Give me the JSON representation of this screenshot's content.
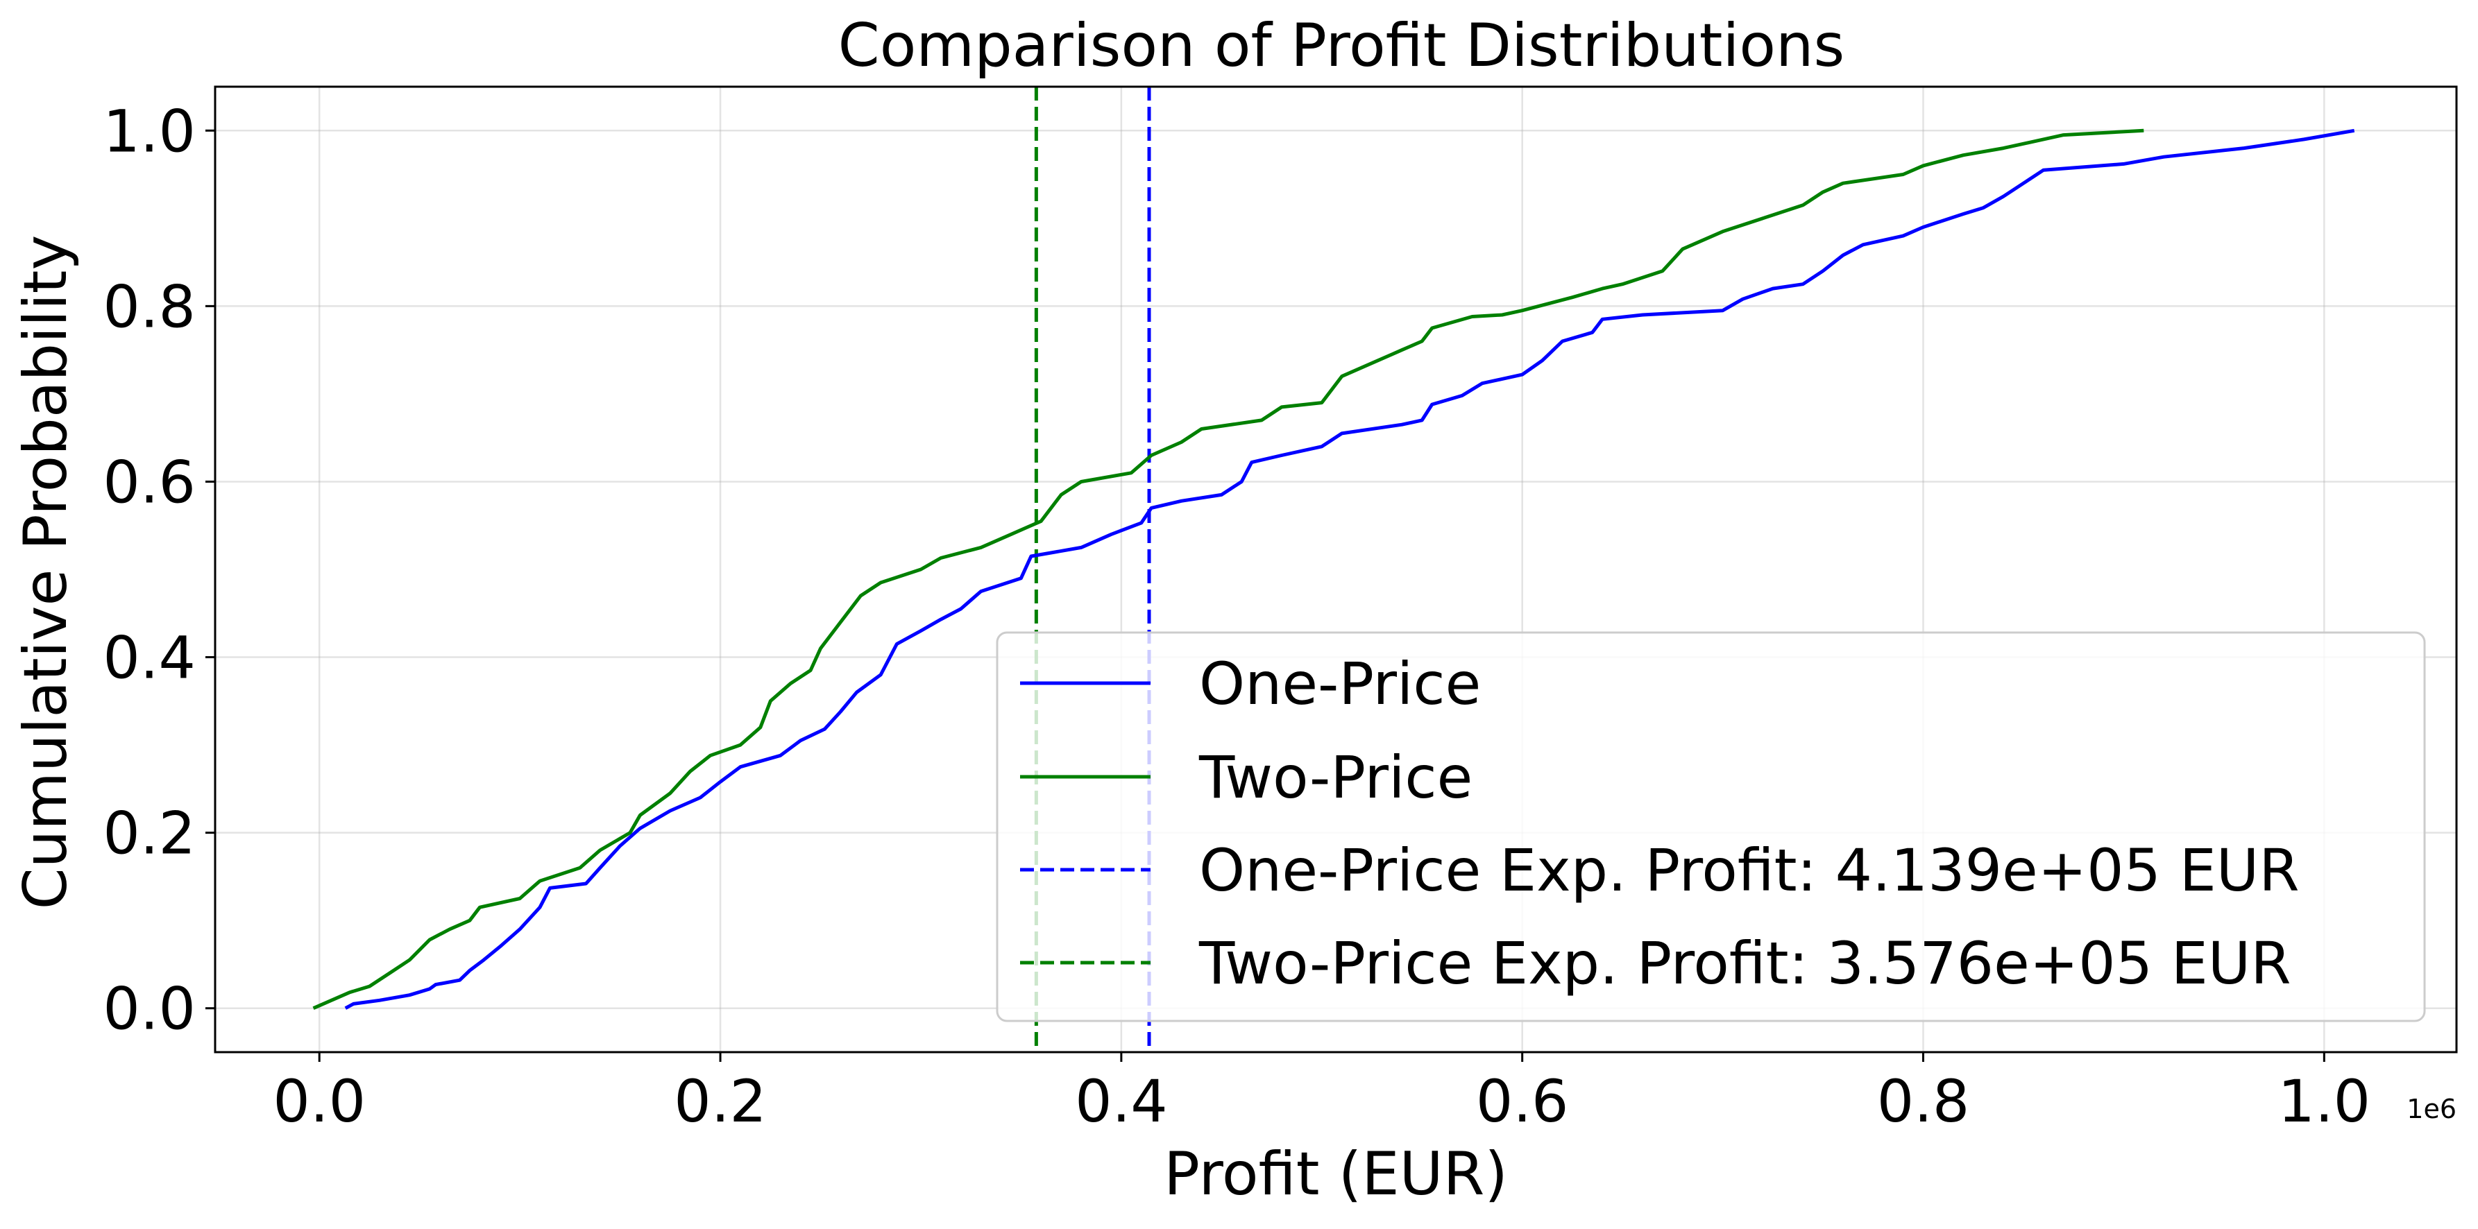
{
  "chart_data": {
    "type": "line",
    "title": "Comparison of Profit Distributions",
    "xlabel": "Profit (EUR)",
    "ylabel": "Cumulative Probability",
    "x_offset_label": "1e6",
    "xlim": [
      -0.052,
      1.066
    ],
    "ylim": [
      -0.05,
      1.05
    ],
    "x_scale_factor": 1000000,
    "x_ticks": [
      0.0,
      0.2,
      0.4,
      0.6,
      0.8,
      1.0
    ],
    "x_tick_labels": [
      "0.0",
      "0.2",
      "0.4",
      "0.6",
      "0.8",
      "1.0"
    ],
    "y_ticks": [
      0.0,
      0.2,
      0.4,
      0.6,
      0.8,
      1.0
    ],
    "y_tick_labels": [
      "0.0",
      "0.2",
      "0.4",
      "0.6",
      "0.8",
      "1.0"
    ],
    "grid": true,
    "legend_position": "lower-right",
    "series": [
      {
        "name": "One-Price",
        "style": "solid",
        "color": "#0000ff",
        "points": [
          [
            0.013,
            0.0
          ],
          [
            0.017,
            0.005
          ],
          [
            0.03,
            0.009
          ],
          [
            0.045,
            0.015
          ],
          [
            0.055,
            0.022
          ],
          [
            0.058,
            0.027
          ],
          [
            0.07,
            0.032
          ],
          [
            0.075,
            0.043
          ],
          [
            0.082,
            0.055
          ],
          [
            0.09,
            0.07
          ],
          [
            0.1,
            0.09
          ],
          [
            0.11,
            0.115
          ],
          [
            0.115,
            0.137
          ],
          [
            0.133,
            0.142
          ],
          [
            0.14,
            0.16
          ],
          [
            0.15,
            0.185
          ],
          [
            0.16,
            0.205
          ],
          [
            0.175,
            0.225
          ],
          [
            0.19,
            0.24
          ],
          [
            0.2,
            0.258
          ],
          [
            0.21,
            0.275
          ],
          [
            0.23,
            0.288
          ],
          [
            0.24,
            0.305
          ],
          [
            0.252,
            0.318
          ],
          [
            0.26,
            0.338
          ],
          [
            0.268,
            0.36
          ],
          [
            0.28,
            0.38
          ],
          [
            0.288,
            0.415
          ],
          [
            0.3,
            0.43
          ],
          [
            0.31,
            0.443
          ],
          [
            0.32,
            0.455
          ],
          [
            0.33,
            0.475
          ],
          [
            0.35,
            0.49
          ],
          [
            0.355,
            0.515
          ],
          [
            0.38,
            0.525
          ],
          [
            0.395,
            0.54
          ],
          [
            0.41,
            0.553
          ],
          [
            0.415,
            0.57
          ],
          [
            0.43,
            0.578
          ],
          [
            0.45,
            0.585
          ],
          [
            0.46,
            0.6
          ],
          [
            0.465,
            0.622
          ],
          [
            0.48,
            0.63
          ],
          [
            0.5,
            0.64
          ],
          [
            0.51,
            0.655
          ],
          [
            0.54,
            0.665
          ],
          [
            0.55,
            0.67
          ],
          [
            0.555,
            0.688
          ],
          [
            0.57,
            0.698
          ],
          [
            0.58,
            0.712
          ],
          [
            0.6,
            0.722
          ],
          [
            0.61,
            0.738
          ],
          [
            0.62,
            0.76
          ],
          [
            0.635,
            0.77
          ],
          [
            0.64,
            0.785
          ],
          [
            0.66,
            0.79
          ],
          [
            0.7,
            0.795
          ],
          [
            0.71,
            0.808
          ],
          [
            0.725,
            0.82
          ],
          [
            0.74,
            0.825
          ],
          [
            0.75,
            0.84
          ],
          [
            0.76,
            0.858
          ],
          [
            0.77,
            0.87
          ],
          [
            0.79,
            0.88
          ],
          [
            0.8,
            0.89
          ],
          [
            0.82,
            0.905
          ],
          [
            0.83,
            0.912
          ],
          [
            0.84,
            0.925
          ],
          [
            0.85,
            0.94
          ],
          [
            0.86,
            0.955
          ],
          [
            0.9,
            0.962
          ],
          [
            0.92,
            0.97
          ],
          [
            0.96,
            0.98
          ],
          [
            0.99,
            0.99
          ],
          [
            1.015,
            1.0
          ]
        ]
      },
      {
        "name": "Two-Price",
        "style": "solid",
        "color": "#008000",
        "points": [
          [
            -0.003,
            0.0
          ],
          [
            0.005,
            0.008
          ],
          [
            0.015,
            0.018
          ],
          [
            0.025,
            0.025
          ],
          [
            0.035,
            0.04
          ],
          [
            0.045,
            0.055
          ],
          [
            0.055,
            0.078
          ],
          [
            0.065,
            0.09
          ],
          [
            0.075,
            0.1
          ],
          [
            0.08,
            0.115
          ],
          [
            0.1,
            0.125
          ],
          [
            0.11,
            0.145
          ],
          [
            0.13,
            0.16
          ],
          [
            0.14,
            0.18
          ],
          [
            0.155,
            0.2
          ],
          [
            0.16,
            0.22
          ],
          [
            0.175,
            0.245
          ],
          [
            0.185,
            0.27
          ],
          [
            0.195,
            0.288
          ],
          [
            0.21,
            0.3
          ],
          [
            0.22,
            0.32
          ],
          [
            0.225,
            0.35
          ],
          [
            0.235,
            0.37
          ],
          [
            0.245,
            0.385
          ],
          [
            0.25,
            0.41
          ],
          [
            0.26,
            0.44
          ],
          [
            0.27,
            0.47
          ],
          [
            0.28,
            0.485
          ],
          [
            0.3,
            0.5
          ],
          [
            0.31,
            0.513
          ],
          [
            0.33,
            0.525
          ],
          [
            0.345,
            0.54
          ],
          [
            0.36,
            0.555
          ],
          [
            0.37,
            0.585
          ],
          [
            0.38,
            0.6
          ],
          [
            0.405,
            0.61
          ],
          [
            0.415,
            0.63
          ],
          [
            0.43,
            0.645
          ],
          [
            0.44,
            0.66
          ],
          [
            0.47,
            0.67
          ],
          [
            0.48,
            0.685
          ],
          [
            0.5,
            0.69
          ],
          [
            0.51,
            0.72
          ],
          [
            0.525,
            0.735
          ],
          [
            0.54,
            0.75
          ],
          [
            0.55,
            0.76
          ],
          [
            0.555,
            0.775
          ],
          [
            0.575,
            0.788
          ],
          [
            0.59,
            0.79
          ],
          [
            0.6,
            0.795
          ],
          [
            0.625,
            0.81
          ],
          [
            0.64,
            0.82
          ],
          [
            0.65,
            0.825
          ],
          [
            0.67,
            0.84
          ],
          [
            0.68,
            0.865
          ],
          [
            0.7,
            0.885
          ],
          [
            0.72,
            0.9
          ],
          [
            0.74,
            0.915
          ],
          [
            0.75,
            0.93
          ],
          [
            0.76,
            0.94
          ],
          [
            0.79,
            0.95
          ],
          [
            0.8,
            0.96
          ],
          [
            0.82,
            0.972
          ],
          [
            0.84,
            0.98
          ],
          [
            0.86,
            0.99
          ],
          [
            0.87,
            0.995
          ],
          [
            0.91,
            1.0
          ]
        ]
      }
    ],
    "vertical_lines": [
      {
        "name": "One-Price Exp. Profit: 4.139e+05 EUR",
        "x": 0.4139,
        "style": "dashed",
        "color": "#0000ff"
      },
      {
        "name": "Two-Price Exp. Profit: 3.576e+05 EUR",
        "x": 0.3576,
        "style": "dashed",
        "color": "#008000"
      }
    ],
    "legend": [
      {
        "label": "One-Price",
        "style": "solid",
        "color": "#0000ff"
      },
      {
        "label": "Two-Price",
        "style": "solid",
        "color": "#008000"
      },
      {
        "label": "One-Price Exp. Profit: 4.139e+05 EUR",
        "style": "dashed",
        "color": "#0000ff"
      },
      {
        "label": "Two-Price Exp. Profit: 3.576e+05 EUR",
        "style": "dashed",
        "color": "#008000"
      }
    ]
  }
}
